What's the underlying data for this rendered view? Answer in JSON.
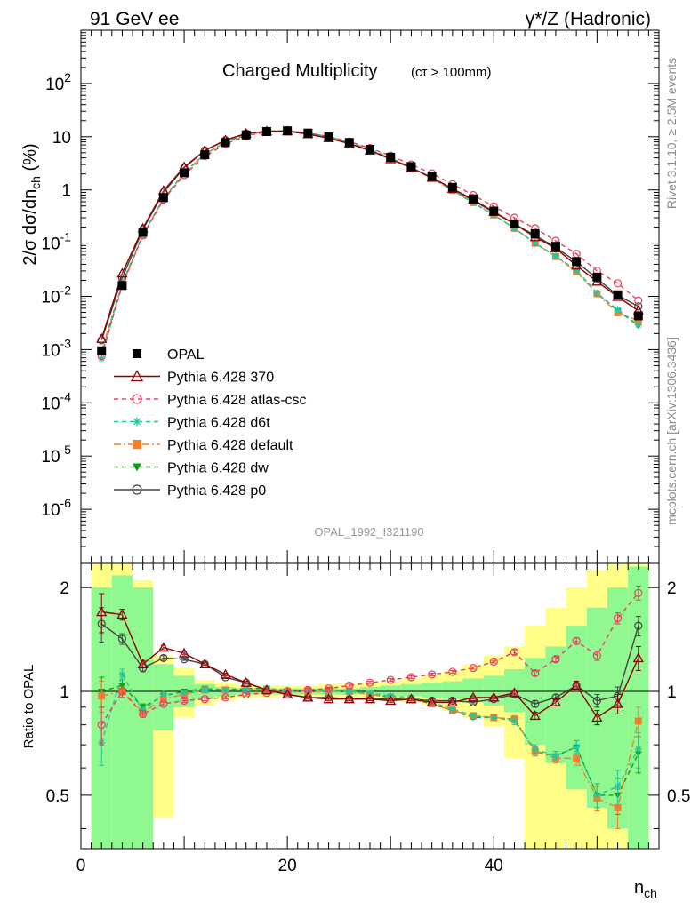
{
  "header": {
    "left": "91 GeV ee",
    "right": "γ*/Z (Hadronic)",
    "title": "Charged Multiplicity",
    "title_sub": "(cτ > 100mm)",
    "analysis_id": "OPAL_1992_I321190",
    "side_rivet": "Rivet 3.1.10, ≥ 2.5M events",
    "side_site": "mcplots.cern.ch [arXiv:1306.3436]"
  },
  "axis_labels": {
    "ylabel_main": "2/σ dσ/dn_ch (%)",
    "ylabel_ratio": "Ratio to OPAL",
    "xlabel": "n_ch"
  },
  "chart_data": {
    "type": "line",
    "main": {
      "yscale": "log",
      "ylim": [
        1e-07,
        1000
      ],
      "xlim": [
        0,
        56
      ],
      "yticks": [
        "10^-6",
        "10^-5",
        "10^-4",
        "10^-3",
        "10^-2",
        "10^-1",
        "1",
        "10",
        "10^2"
      ],
      "x": [
        2,
        4,
        6,
        8,
        10,
        12,
        14,
        16,
        18,
        20,
        22,
        24,
        26,
        28,
        30,
        32,
        34,
        36,
        38,
        40,
        42,
        44,
        46,
        48,
        50,
        52,
        54
      ],
      "data": {
        "name": "OPAL",
        "values": [
          0.00095,
          0.016,
          0.16,
          0.72,
          2.1,
          4.6,
          7.8,
          10.8,
          12.5,
          12.9,
          11.7,
          9.9,
          7.8,
          5.8,
          4.1,
          2.75,
          1.8,
          1.12,
          0.68,
          0.4,
          0.23,
          0.15,
          0.087,
          0.045,
          0.023,
          0.0107,
          0.0043
        ]
      },
      "series": [
        {
          "name": "Pythia 6.428 370",
          "color": "#8b0000",
          "dash": "",
          "marker": "triangle-open",
          "values": [
            0.0016,
            0.027,
            0.19,
            0.97,
            2.7,
            5.5,
            8.6,
            11.5,
            12.7,
            12.7,
            11.2,
            9.4,
            7.4,
            5.5,
            3.8,
            2.6,
            1.7,
            1.05,
            0.66,
            0.39,
            0.23,
            0.13,
            0.08,
            0.038,
            0.019,
            0.0098,
            0.0054
          ]
        },
        {
          "name": "Pythia 6.428 atlas-csc",
          "color": "#e8405c",
          "dash": "5,4",
          "marker": "circle-open",
          "values": [
            0.00076,
            0.016,
            0.14,
            0.66,
            1.9,
            4.3,
            7.3,
            10.4,
            12.3,
            12.8,
            11.8,
            10.1,
            8.1,
            6.1,
            4.4,
            3.0,
            2.05,
            1.28,
            0.8,
            0.49,
            0.3,
            0.19,
            0.11,
            0.063,
            0.03,
            0.0176,
            0.0083
          ]
        },
        {
          "name": "Pythia 6.428 d6t",
          "color": "#20c8a0",
          "dash": "5,4",
          "marker": "star",
          "values": [
            0.00068,
            0.018,
            0.14,
            0.7,
            2.05,
            4.7,
            7.9,
            10.9,
            12.7,
            13.0,
            11.8,
            10.0,
            7.9,
            5.8,
            4.0,
            2.65,
            1.67,
            1.0,
            0.58,
            0.34,
            0.19,
            0.1,
            0.057,
            0.031,
            0.0115,
            0.0056,
            0.0029
          ]
        },
        {
          "name": "Pythia 6.428 default",
          "color": "#f08030",
          "dash": "8,3,2,3",
          "marker": "square",
          "values": [
            0.00093,
            0.016,
            0.14,
            0.68,
            2.05,
            4.7,
            7.9,
            10.9,
            12.6,
            12.9,
            11.7,
            9.9,
            7.8,
            5.7,
            3.95,
            2.6,
            1.65,
            0.98,
            0.58,
            0.34,
            0.19,
            0.1,
            0.056,
            0.029,
            0.0112,
            0.0049,
            0.0035
          ]
        },
        {
          "name": "Pythia 6.428 dw",
          "color": "#10a010",
          "dash": "5,4",
          "marker": "triangle-down",
          "values": [
            0.00095,
            0.017,
            0.145,
            0.7,
            2.1,
            4.7,
            7.9,
            11.0,
            12.7,
            12.9,
            11.8,
            10.0,
            7.8,
            5.7,
            3.95,
            2.6,
            1.65,
            0.98,
            0.57,
            0.34,
            0.19,
            0.1,
            0.056,
            0.031,
            0.0115,
            0.0054,
            0.0028
          ]
        },
        {
          "name": "Pythia 6.428 p0",
          "color": "#444444",
          "dash": "",
          "marker": "circle-open",
          "values": [
            0.0015,
            0.022,
            0.18,
            0.9,
            2.6,
            5.5,
            8.6,
            11.5,
            12.6,
            12.6,
            11.3,
            9.5,
            7.4,
            5.5,
            3.9,
            2.6,
            1.7,
            1.05,
            0.63,
            0.38,
            0.23,
            0.14,
            0.083,
            0.045,
            0.0215,
            0.0104,
            0.0065
          ]
        }
      ]
    },
    "ratio": {
      "ylim": [
        0.35,
        2.35
      ],
      "yticks": [
        0.5,
        1,
        2
      ],
      "xticks": [
        0,
        20,
        40
      ],
      "xlim": [
        0,
        56
      ],
      "bands": [
        {
          "x0": 1,
          "x1": 3,
          "g_lo": 0.35,
          "g_hi": 2.0,
          "y_lo": 0.35,
          "y_hi": 2.35
        },
        {
          "x0": 3,
          "x1": 5,
          "g_lo": 0.35,
          "g_hi": 2.17,
          "y_lo": 0.35,
          "y_hi": 2.35
        },
        {
          "x0": 5,
          "x1": 7,
          "g_lo": 0.35,
          "g_hi": 2.0,
          "y_lo": 0.35,
          "y_hi": 2.1
        },
        {
          "x0": 7,
          "x1": 9,
          "g_lo": 0.77,
          "g_hi": 1.2,
          "y_lo": 0.43,
          "y_hi": 1.27
        },
        {
          "x0": 9,
          "x1": 11,
          "g_lo": 0.9,
          "g_hi": 1.11,
          "y_lo": 0.84,
          "y_hi": 1.17
        },
        {
          "x0": 11,
          "x1": 13,
          "g_lo": 0.95,
          "g_hi": 1.05,
          "y_lo": 0.91,
          "y_hi": 1.08
        },
        {
          "x0": 13,
          "x1": 15,
          "g_lo": 0.97,
          "g_hi": 1.03,
          "y_lo": 0.94,
          "y_hi": 1.06
        },
        {
          "x0": 15,
          "x1": 17,
          "g_lo": 0.98,
          "g_hi": 1.02,
          "y_lo": 0.96,
          "y_hi": 1.04
        },
        {
          "x0": 17,
          "x1": 19,
          "g_lo": 0.98,
          "g_hi": 1.02,
          "y_lo": 0.96,
          "y_hi": 1.04
        },
        {
          "x0": 19,
          "x1": 21,
          "g_lo": 0.98,
          "g_hi": 1.02,
          "y_lo": 0.97,
          "y_hi": 1.04
        },
        {
          "x0": 21,
          "x1": 23,
          "g_lo": 0.98,
          "g_hi": 1.02,
          "y_lo": 0.97,
          "y_hi": 1.04
        },
        {
          "x0": 23,
          "x1": 25,
          "g_lo": 0.98,
          "g_hi": 1.02,
          "y_lo": 0.96,
          "y_hi": 1.05
        },
        {
          "x0": 25,
          "x1": 27,
          "g_lo": 0.98,
          "g_hi": 1.02,
          "y_lo": 0.96,
          "y_hi": 1.05
        },
        {
          "x0": 27,
          "x1": 29,
          "g_lo": 0.98,
          "g_hi": 1.03,
          "y_lo": 0.96,
          "y_hi": 1.06
        },
        {
          "x0": 29,
          "x1": 31,
          "g_lo": 0.97,
          "g_hi": 1.04,
          "y_lo": 0.95,
          "y_hi": 1.07
        },
        {
          "x0": 31,
          "x1": 33,
          "g_lo": 0.97,
          "g_hi": 1.05,
          "y_lo": 0.93,
          "y_hi": 1.09
        },
        {
          "x0": 33,
          "x1": 35,
          "g_lo": 0.96,
          "g_hi": 1.06,
          "y_lo": 0.91,
          "y_hi": 1.12
        },
        {
          "x0": 35,
          "x1": 37,
          "g_lo": 0.95,
          "g_hi": 1.07,
          "y_lo": 0.88,
          "y_hi": 1.15
        },
        {
          "x0": 37,
          "x1": 39,
          "g_lo": 0.93,
          "g_hi": 1.09,
          "y_lo": 0.84,
          "y_hi": 1.2
        },
        {
          "x0": 39,
          "x1": 41,
          "g_lo": 0.91,
          "g_hi": 1.11,
          "y_lo": 0.79,
          "y_hi": 1.27
        },
        {
          "x0": 41,
          "x1": 43,
          "g_lo": 0.87,
          "g_hi": 1.16,
          "y_lo": 0.64,
          "y_hi": 1.35
        },
        {
          "x0": 43,
          "x1": 45,
          "g_lo": 0.7,
          "g_hi": 1.25,
          "y_lo": 0.35,
          "y_hi": 1.55
        },
        {
          "x0": 45,
          "x1": 47,
          "g_lo": 0.62,
          "g_hi": 1.35,
          "y_lo": 0.35,
          "y_hi": 1.75
        },
        {
          "x0": 47,
          "x1": 49,
          "g_lo": 0.52,
          "g_hi": 1.55,
          "y_lo": 0.35,
          "y_hi": 2.0
        },
        {
          "x0": 49,
          "x1": 51,
          "g_lo": 0.46,
          "g_hi": 1.75,
          "y_lo": 0.35,
          "y_hi": 2.25
        },
        {
          "x0": 51,
          "x1": 53,
          "g_lo": 0.4,
          "g_hi": 2.0,
          "y_lo": 0.35,
          "y_hi": 2.35
        },
        {
          "x0": 53,
          "x1": 55,
          "g_lo": 0.35,
          "g_hi": 2.3,
          "y_lo": 0.35,
          "y_hi": 2.35
        }
      ],
      "series": [
        {
          "name": "Pythia 6.428 370",
          "values": [
            1.7,
            1.67,
            1.2,
            1.34,
            1.29,
            1.2,
            1.12,
            1.06,
            1.01,
            0.98,
            0.96,
            0.95,
            0.95,
            0.95,
            0.94,
            0.95,
            0.93,
            0.93,
            0.96,
            0.96,
            0.99,
            0.85,
            0.93,
            1.04,
            0.84,
            0.92,
            1.25
          ],
          "err": [
            0.22,
            0.06,
            0.03,
            0.02,
            0.01,
            0.01,
            0.01,
            0.01,
            0.01,
            0.01,
            0.01,
            0.01,
            0.01,
            0.01,
            0.01,
            0.01,
            0.01,
            0.01,
            0.01,
            0.01,
            0.02,
            0.02,
            0.02,
            0.03,
            0.04,
            0.06,
            0.1
          ]
        },
        {
          "name": "Pythia 6.428 atlas-csc",
          "values": [
            0.8,
            1.0,
            0.86,
            0.92,
            0.94,
            0.95,
            0.96,
            0.98,
            0.99,
            1.0,
            1.01,
            1.02,
            1.04,
            1.06,
            1.08,
            1.1,
            1.12,
            1.14,
            1.17,
            1.22,
            1.3,
            1.13,
            1.24,
            1.4,
            1.27,
            1.63,
            1.93
          ],
          "err": [
            0.1,
            0.04,
            0.02,
            0.01,
            0.01,
            0.01,
            0.01,
            0.01,
            0.01,
            0.01,
            0.01,
            0.01,
            0.01,
            0.01,
            0.01,
            0.01,
            0.01,
            0.01,
            0.01,
            0.01,
            0.02,
            0.02,
            0.02,
            0.03,
            0.04,
            0.06,
            0.09
          ]
        },
        {
          "name": "Pythia 6.428 d6t",
          "values": [
            0.71,
            1.12,
            0.88,
            0.98,
            0.99,
            1.01,
            1.01,
            1.01,
            1.02,
            1.01,
            1.01,
            1.0,
            1.0,
            0.99,
            0.97,
            0.96,
            0.93,
            0.89,
            0.85,
            0.84,
            0.82,
            0.68,
            0.65,
            0.69,
            0.5,
            0.53,
            0.68
          ],
          "err": [
            0.1,
            0.04,
            0.02,
            0.01,
            0.01,
            0.01,
            0.01,
            0.01,
            0.01,
            0.01,
            0.01,
            0.01,
            0.01,
            0.01,
            0.01,
            0.01,
            0.01,
            0.01,
            0.01,
            0.01,
            0.02,
            0.02,
            0.02,
            0.03,
            0.04,
            0.06,
            0.08
          ]
        },
        {
          "name": "Pythia 6.428 default",
          "values": [
            0.97,
            1.0,
            0.87,
            0.95,
            0.98,
            1.01,
            1.01,
            1.01,
            1.01,
            1.0,
            1.0,
            1.0,
            1.0,
            0.98,
            0.96,
            0.95,
            0.92,
            0.88,
            0.85,
            0.84,
            0.83,
            0.67,
            0.64,
            0.64,
            0.49,
            0.46,
            0.82
          ],
          "err": [
            0.1,
            0.04,
            0.02,
            0.01,
            0.01,
            0.01,
            0.01,
            0.01,
            0.01,
            0.01,
            0.01,
            0.01,
            0.01,
            0.01,
            0.01,
            0.01,
            0.01,
            0.01,
            0.01,
            0.01,
            0.02,
            0.02,
            0.02,
            0.03,
            0.04,
            0.06,
            0.08
          ]
        },
        {
          "name": "Pythia 6.428 dw",
          "values": [
            1.0,
            1.04,
            0.9,
            0.97,
            1.0,
            1.02,
            1.01,
            1.02,
            1.02,
            1.0,
            1.01,
            1.01,
            1.0,
            0.98,
            0.96,
            0.95,
            0.92,
            0.88,
            0.84,
            0.84,
            0.83,
            0.67,
            0.65,
            0.69,
            0.5,
            0.5,
            0.66
          ],
          "err": [
            0.1,
            0.04,
            0.02,
            0.01,
            0.01,
            0.01,
            0.01,
            0.01,
            0.01,
            0.01,
            0.01,
            0.01,
            0.01,
            0.01,
            0.01,
            0.01,
            0.01,
            0.01,
            0.01,
            0.01,
            0.02,
            0.02,
            0.02,
            0.03,
            0.04,
            0.06,
            0.08
          ]
        },
        {
          "name": "Pythia 6.428 p0",
          "values": [
            1.57,
            1.42,
            1.17,
            1.25,
            1.24,
            1.2,
            1.1,
            1.06,
            1.01,
            0.98,
            0.96,
            0.96,
            0.95,
            0.95,
            0.95,
            0.95,
            0.94,
            0.94,
            0.93,
            0.95,
            0.98,
            0.92,
            0.96,
            1.04,
            0.94,
            0.97,
            1.55
          ],
          "err": [
            0.18,
            0.05,
            0.03,
            0.02,
            0.01,
            0.01,
            0.01,
            0.01,
            0.01,
            0.01,
            0.01,
            0.01,
            0.01,
            0.01,
            0.01,
            0.01,
            0.01,
            0.01,
            0.01,
            0.01,
            0.02,
            0.02,
            0.02,
            0.03,
            0.04,
            0.06,
            0.1
          ]
        }
      ]
    }
  }
}
